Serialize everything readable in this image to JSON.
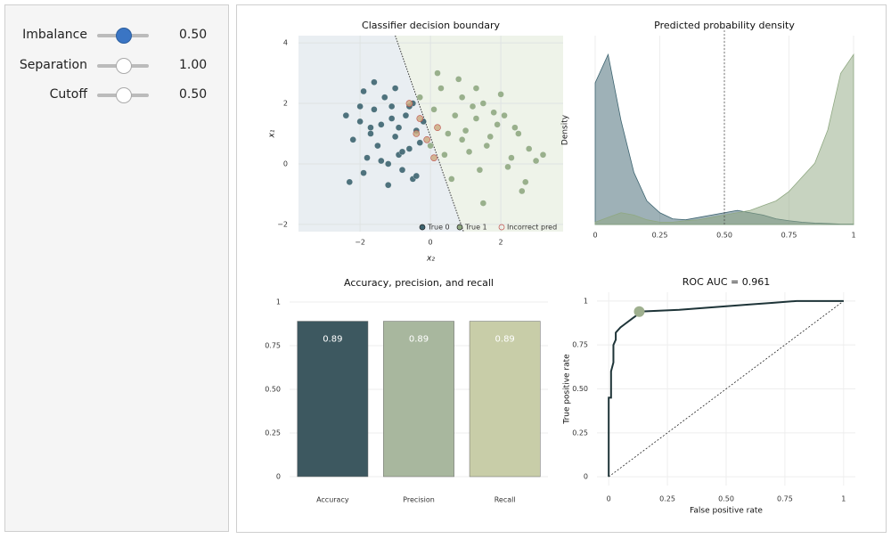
{
  "controls": [
    {
      "label": "Imbalance",
      "value": "0.50"
    },
    {
      "label": "Separation",
      "value": "1.00"
    },
    {
      "label": "Cutoff",
      "value": "0.50"
    }
  ],
  "chart_data": [
    {
      "type": "scatter",
      "title": "Classifier decision boundary",
      "x_label": "x₂",
      "y_label": "x₁",
      "xlim": [
        -3.75,
        3.77
      ],
      "ylim": [
        -2.24,
        4.24
      ],
      "xticks": [
        {
          "value": -2,
          "label": "−2"
        },
        0,
        2
      ],
      "yticks": [
        {
          "value": -2,
          "label": "−2"
        },
        0,
        2,
        4
      ],
      "grid": true,
      "boundary": {
        "x": [
          -1.0,
          0.94
        ],
        "y": [
          4.24,
          -2.24
        ]
      },
      "series": [
        {
          "name": "True 0",
          "color": "#3d6470",
          "x": [
            -2.4,
            -2.2,
            -2.0,
            -1.9,
            -1.8,
            -1.7,
            -1.6,
            -1.5,
            -1.4,
            -1.3,
            -1.2,
            -1.1,
            -1.0,
            -0.9,
            -0.8,
            -0.7,
            -0.6,
            -0.5,
            -0.4,
            -0.3,
            -2.3,
            -1.9,
            -1.6,
            -1.2,
            -0.9,
            -0.6,
            -1.4,
            -1.0,
            -0.5,
            -0.2,
            -1.7,
            -1.1,
            -0.8,
            -2.0,
            -0.4
          ],
          "y": [
            1.6,
            0.8,
            1.4,
            2.4,
            0.2,
            1.0,
            1.8,
            0.6,
            1.3,
            2.2,
            0.0,
            1.5,
            0.9,
            1.2,
            -0.2,
            1.6,
            0.5,
            2.0,
            1.1,
            0.7,
            -0.6,
            -0.3,
            2.7,
            -0.7,
            0.3,
            1.9,
            0.1,
            2.5,
            -0.5,
            1.4,
            1.2,
            1.9,
            0.4,
            1.9,
            -0.4
          ]
        },
        {
          "name": "True 1",
          "color": "#8fa882",
          "x": [
            0.1,
            0.3,
            0.5,
            0.7,
            0.9,
            1.1,
            1.3,
            1.5,
            1.7,
            1.9,
            2.1,
            2.3,
            2.5,
            2.7,
            3.0,
            0.4,
            0.8,
            1.2,
            1.6,
            2.0,
            2.4,
            2.8,
            3.2,
            0.6,
            1.0,
            1.4,
            1.8,
            2.2,
            0.2,
            0.0,
            -0.3,
            1.5,
            2.6,
            0.9,
            1.3
          ],
          "y": [
            1.8,
            2.5,
            1.0,
            1.6,
            2.2,
            0.4,
            1.5,
            2.0,
            0.9,
            1.3,
            1.6,
            0.2,
            1.0,
            -0.6,
            0.1,
            0.3,
            2.8,
            1.9,
            0.6,
            2.3,
            1.2,
            0.5,
            0.3,
            -0.5,
            1.1,
            -0.2,
            1.7,
            -0.1,
            3.0,
            0.6,
            2.2,
            -1.3,
            -0.9,
            0.8,
            2.5
          ]
        },
        {
          "name": "Incorrect pred",
          "color": "#c0504d",
          "x": [
            -0.6,
            -0.3,
            -0.1,
            0.1,
            0.2,
            -0.4
          ],
          "y": [
            2.0,
            1.5,
            0.8,
            0.2,
            1.2,
            1.0
          ]
        }
      ]
    },
    {
      "type": "area",
      "title": "Predicted probability density",
      "y_label": "Density",
      "xlim": [
        0,
        1
      ],
      "ylim": [
        0,
        4
      ],
      "xticks": [
        0,
        0.25,
        {
          "value": 0.5,
          "label": "0.50"
        },
        0.75,
        1
      ],
      "grid": true,
      "cutoff": 0.5,
      "x": [
        0,
        0.05,
        0.1,
        0.15,
        0.2,
        0.25,
        0.3,
        0.35,
        0.4,
        0.45,
        0.5,
        0.55,
        0.6,
        0.65,
        0.7,
        0.75,
        0.8,
        0.85,
        0.9,
        0.95,
        1
      ],
      "series": [
        {
          "color": "#3d6470",
          "values": [
            3.0,
            3.6,
            2.2,
            1.1,
            0.5,
            0.25,
            0.12,
            0.1,
            0.15,
            0.2,
            0.25,
            0.3,
            0.25,
            0.2,
            0.12,
            0.08,
            0.05,
            0.03,
            0.02,
            0.01,
            0.01
          ]
        },
        {
          "color": "#8fa882",
          "values": [
            0.05,
            0.15,
            0.25,
            0.2,
            0.1,
            0.05,
            0.05,
            0.08,
            0.1,
            0.15,
            0.2,
            0.25,
            0.3,
            0.4,
            0.5,
            0.7,
            1.0,
            1.3,
            2.0,
            3.2,
            3.6
          ]
        }
      ]
    },
    {
      "type": "bar",
      "title": "Accuracy, precision, and recall",
      "categories": [
        "Accuracy",
        "Precision",
        "Recall"
      ],
      "values": [
        0.89,
        0.89,
        0.89
      ],
      "value_labels": [
        "0.89",
        "0.89",
        "0.89"
      ],
      "colors": [
        "#3d5860",
        "#a8b79e",
        "#c8cda8"
      ],
      "ylim": [
        0,
        1
      ],
      "yticks": [
        0,
        0.25,
        {
          "value": 0.5,
          "label": "0.50"
        },
        0.75,
        1
      ],
      "grid": true
    },
    {
      "type": "line",
      "title": "ROC AUC = 0.961",
      "x_label": "False positive rate",
      "y_label": "True positive rate",
      "xlim": [
        -0.05,
        1.05
      ],
      "ylim": [
        -0.05,
        1.05
      ],
      "xticks": [
        0,
        0.25,
        {
          "value": 0.5,
          "label": "0.50"
        },
        0.75,
        1
      ],
      "yticks": [
        0,
        0.25,
        {
          "value": 0.5,
          "label": "0.50"
        },
        0.75,
        1
      ],
      "grid": true,
      "series": [
        {
          "color": "#1e3438",
          "x": [
            0,
            0,
            0.01,
            0.01,
            0.02,
            0.02,
            0.03,
            0.03,
            0.05,
            0.07,
            0.1,
            0.12,
            0.13,
            0.3,
            0.4,
            0.5,
            0.6,
            0.7,
            0.8,
            1
          ],
          "y": [
            0,
            0.45,
            0.45,
            0.6,
            0.65,
            0.75,
            0.78,
            0.82,
            0.85,
            0.87,
            0.9,
            0.92,
            0.94,
            0.95,
            0.96,
            0.97,
            0.98,
            0.99,
            1,
            1
          ]
        }
      ],
      "point": {
        "x": 0.13,
        "y": 0.94,
        "color": "#9fb08f"
      }
    }
  ]
}
